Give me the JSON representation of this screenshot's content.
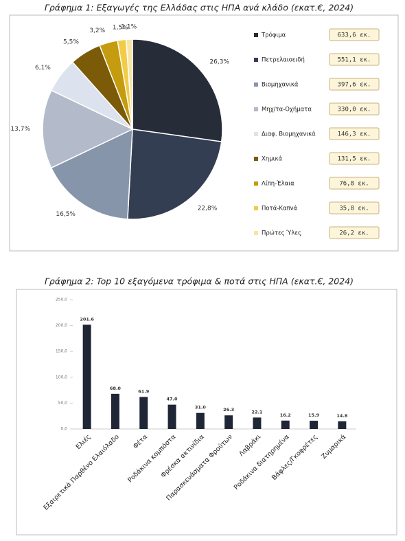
{
  "chart_data": [
    {
      "type": "pie",
      "title": "Γράφημα 1: Εξαγωγές της Ελλάδας στις ΗΠΑ ανά κλάδο (εκατ.€, 2024)",
      "categories": [
        "Τρόφιμα",
        "Πετρελαιοειδή",
        "Βιομηχανικά",
        "Μηχ/τα-Οχήματα",
        "Διαφ. Βιομηχανικά",
        "Χημικά",
        "Λίπη-Έλαια",
        "Ποτά-Καπνά",
        "Πρώτες Ύλες"
      ],
      "values": [
        633.6,
        551.1,
        397.6,
        330.0,
        146.3,
        131.5,
        76.8,
        35.8,
        26.2
      ],
      "value_labels": [
        "633,6 εκ.",
        "551,1 εκ.",
        "397,6 εκ.",
        "330,0 εκ.",
        "146,3 εκ.",
        "131,5 εκ.",
        "76,8 εκ.",
        "35,8 εκ.",
        "26,2 εκ."
      ],
      "percents": [
        26.3,
        22.8,
        16.5,
        13.7,
        6.1,
        5.5,
        3.2,
        1.5,
        1.1
      ],
      "percent_labels": [
        "26,3%",
        "22,8%",
        "16,5%",
        "13,7%",
        "6,1%",
        "5,5%",
        "3,2%",
        "1,5%",
        "1,1%"
      ],
      "colors": [
        "#262c38",
        "#343e52",
        "#8795ab",
        "#b3bbca",
        "#dde3ee",
        "#7b5a08",
        "#c59b0f",
        "#f2cb47",
        "#f8e5a4"
      ]
    },
    {
      "type": "bar",
      "title": "Γράφημα 2: Top 10 εξαγόμενα τρόφιμα & ποτά στις ΗΠΑ (εκατ.€, 2024)",
      "categories": [
        "Ελιές",
        "Εξαιρετικά Παρθένο Ελαιόλαδο",
        "Φέτα",
        "Ροδάκινα κομπόστα",
        "Φρέσκα ακτινίδια",
        "Παρασκευάσματα Φρούτων",
        "Λαβράκι",
        "Ροδάκινα διατηρημένα",
        "Βάφλες/Γκοφρέτες",
        "Ζυμαρικά"
      ],
      "values": [
        201.6,
        68.0,
        61.9,
        47.0,
        31.0,
        26.3,
        22.1,
        16.2,
        15.9,
        14.8
      ],
      "value_labels": [
        "201.6",
        "68.0",
        "61.9",
        "47.0",
        "31.0",
        "26.3",
        "22.1",
        "16.2",
        "15.9",
        "14.8"
      ],
      "color": "#1f2636",
      "ylim": [
        0,
        250
      ],
      "yticks": [
        {
          "value": 0,
          "label": "0,0"
        },
        {
          "value": 50,
          "label": "50,0"
        },
        {
          "value": 100,
          "label": "100,0"
        },
        {
          "value": 150,
          "label": "150,0"
        },
        {
          "value": 200,
          "label": "200,0"
        },
        {
          "value": 250,
          "label": "250,0"
        }
      ]
    }
  ]
}
